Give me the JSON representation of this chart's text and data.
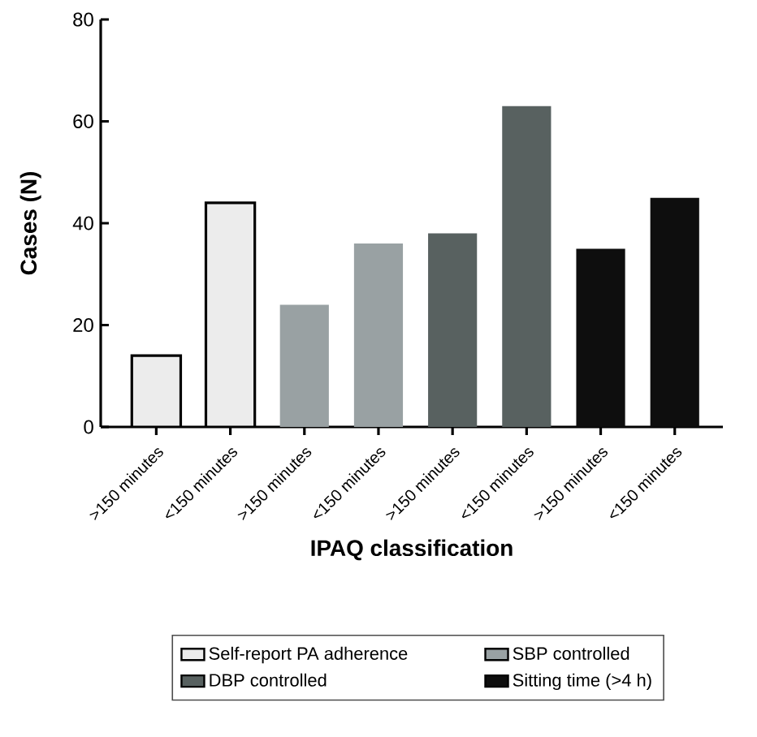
{
  "chart_data": {
    "type": "bar",
    "xlabel": "IPAQ classification",
    "ylabel": "Cases (N)",
    "categories": [
      ">150 minutes",
      "<150 minutes",
      ">150 minutes",
      "<150 minutes",
      ">150 minutes",
      "<150 minutes",
      ">150 minutes",
      "<150 minutes"
    ],
    "series": [
      {
        "name": "Self-report PA adherence",
        "color": "#ececec",
        "values": [
          14,
          44,
          null,
          null,
          null,
          null,
          null,
          null
        ]
      },
      {
        "name": "SBP controlled",
        "color": "#99a1a3",
        "values": [
          null,
          null,
          24,
          36,
          null,
          null,
          null,
          null
        ]
      },
      {
        "name": "DBP controlled",
        "color": "#586160",
        "values": [
          null,
          null,
          null,
          null,
          38,
          63,
          null,
          null
        ]
      },
      {
        "name": "Sitting time (>4 h)",
        "color": "#0e0e0e",
        "values": [
          null,
          null,
          null,
          null,
          null,
          null,
          35,
          45
        ]
      }
    ],
    "ylim": [
      0,
      80
    ],
    "yticks": [
      0,
      20,
      40,
      60,
      80
    ],
    "grid": false,
    "legend": "bottom"
  }
}
